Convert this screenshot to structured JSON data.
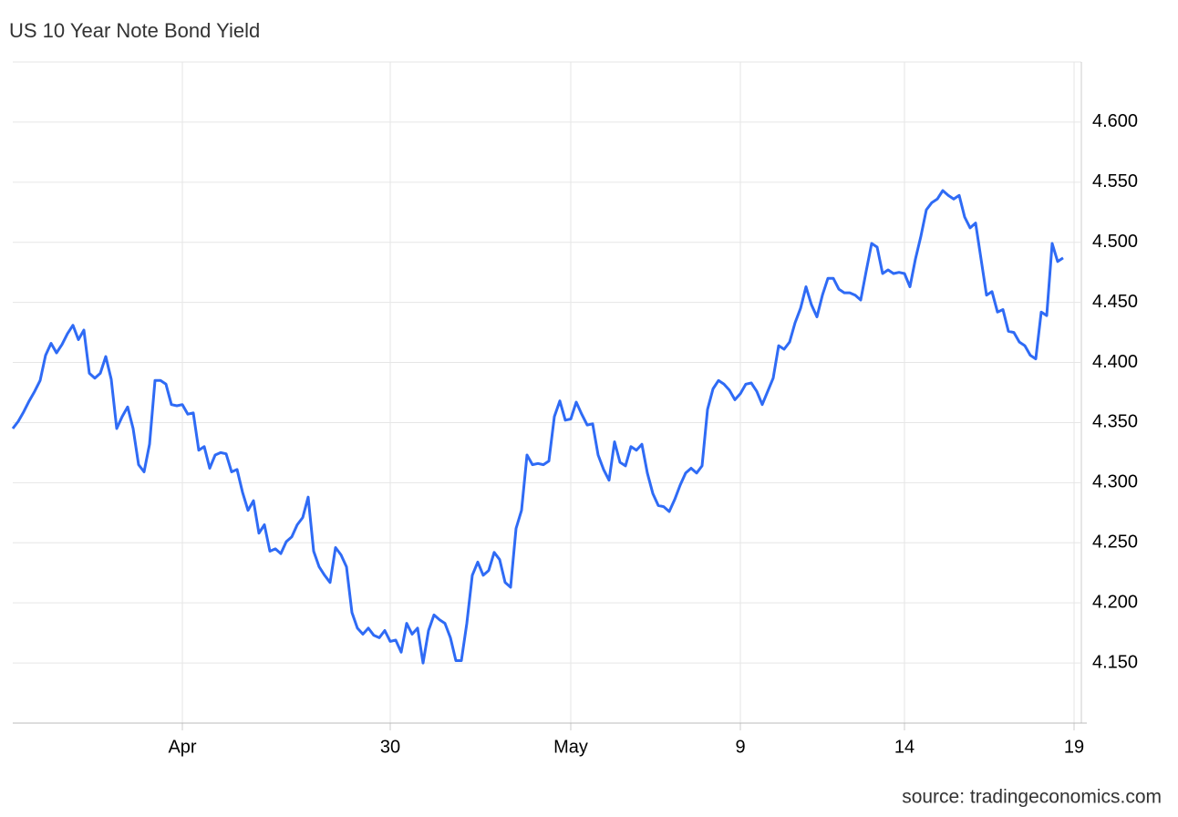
{
  "chart_data": {
    "type": "line",
    "title": "US 10 Year Note Bond Yield",
    "source": "source: tradingeconomics.com",
    "categories": [
      null,
      null,
      null,
      null,
      null,
      null,
      null,
      null,
      null,
      null,
      null,
      null,
      null,
      null,
      null,
      null,
      null,
      null,
      null,
      null,
      null,
      null,
      null,
      null,
      null,
      null,
      null,
      null,
      null,
      null,
      null,
      "Apr",
      null,
      null,
      null,
      null,
      null,
      null,
      null,
      null,
      null,
      null,
      null,
      null,
      null,
      null,
      null,
      null,
      null,
      null,
      null,
      null,
      null,
      null,
      null,
      null,
      null,
      null,
      null,
      null,
      null,
      null,
      null,
      null,
      null,
      null,
      null,
      null,
      null,
      "30",
      null,
      null,
      null,
      null,
      null,
      null,
      null,
      null,
      null,
      null,
      null,
      null,
      null,
      null,
      null,
      null,
      null,
      null,
      null,
      null,
      null,
      null,
      null,
      null,
      null,
      null,
      null,
      null,
      null,
      null,
      null,
      null,
      "May",
      null,
      null,
      null,
      null,
      null,
      null,
      null,
      null,
      null,
      null,
      null,
      null,
      null,
      null,
      null,
      null,
      null,
      null,
      null,
      null,
      null,
      null,
      null,
      null,
      null,
      null,
      null,
      null,
      null,
      null,
      "9",
      null,
      null,
      null,
      null,
      null,
      null,
      null,
      null,
      null,
      null,
      null,
      null,
      null,
      null,
      null,
      null,
      null,
      null,
      null,
      null,
      null,
      null,
      null,
      null,
      null,
      null,
      null,
      null,
      null,
      "14",
      null,
      null,
      null,
      null,
      null,
      null,
      null,
      null,
      null,
      null,
      null,
      null,
      null,
      null,
      null,
      null,
      null,
      null,
      null,
      null,
      null,
      null,
      null,
      null,
      null,
      null,
      null,
      null,
      null,
      null,
      "19"
    ],
    "series": [
      {
        "name": "US 10 Year Note Bond Yield",
        "color": "#2f6bf5",
        "values": [
          4.345,
          4.351,
          4.359,
          4.368,
          4.376,
          4.385,
          4.406,
          4.416,
          4.408,
          4.415,
          4.424,
          4.431,
          4.419,
          4.427,
          4.391,
          4.387,
          4.391,
          4.405,
          4.386,
          4.345,
          4.355,
          4.363,
          4.345,
          4.315,
          4.309,
          4.332,
          4.385,
          4.385,
          4.382,
          4.365,
          4.364,
          4.365,
          4.357,
          4.358,
          4.327,
          4.33,
          4.312,
          4.323,
          4.325,
          4.324,
          4.309,
          4.311,
          4.292,
          4.277,
          4.285,
          4.258,
          4.265,
          4.243,
          4.245,
          4.241,
          4.251,
          4.255,
          4.265,
          4.271,
          4.288,
          4.243,
          4.23,
          4.223,
          4.217,
          4.246,
          4.24,
          4.23,
          4.192,
          4.179,
          4.174,
          4.179,
          4.173,
          4.171,
          4.177,
          4.168,
          4.169,
          4.159,
          4.183,
          4.174,
          4.179,
          4.15,
          4.177,
          4.19,
          4.186,
          4.183,
          4.171,
          4.152,
          4.152,
          4.183,
          4.223,
          4.234,
          4.223,
          4.227,
          4.242,
          4.236,
          4.217,
          4.213,
          4.262,
          4.277,
          4.323,
          4.315,
          4.316,
          4.315,
          4.318,
          4.355,
          4.368,
          4.352,
          4.353,
          4.367,
          4.357,
          4.348,
          4.349,
          4.323,
          4.311,
          4.302,
          4.334,
          4.317,
          4.314,
          4.33,
          4.327,
          4.332,
          4.308,
          4.291,
          4.281,
          4.28,
          4.276,
          4.286,
          4.298,
          4.308,
          4.312,
          4.308,
          4.314,
          4.361,
          4.378,
          4.385,
          4.382,
          4.377,
          4.369,
          4.374,
          4.382,
          4.383,
          4.376,
          4.365,
          4.376,
          4.387,
          4.414,
          4.411,
          4.417,
          4.433,
          4.445,
          4.463,
          4.448,
          4.438,
          4.456,
          4.47,
          4.47,
          4.461,
          4.458,
          4.458,
          4.456,
          4.452,
          4.476,
          4.499,
          4.496,
          4.474,
          4.477,
          4.474,
          4.475,
          4.474,
          4.463,
          4.486,
          4.505,
          4.527,
          4.533,
          4.536,
          4.543,
          4.539,
          4.536,
          4.539,
          4.521,
          4.512,
          4.516,
          4.486,
          4.456,
          4.459,
          4.442,
          4.444,
          4.426,
          4.425,
          4.417,
          4.414,
          4.406,
          4.403,
          4.442,
          4.439,
          4.499,
          4.484,
          4.487,
          null,
          null
        ]
      }
    ],
    "ylim": [
      4.1,
      4.65
    ],
    "yticks": [
      {
        "value": 4.15,
        "label": "4.150"
      },
      {
        "value": 4.2,
        "label": "4.200"
      },
      {
        "value": 4.25,
        "label": "4.250"
      },
      {
        "value": 4.3,
        "label": "4.300"
      },
      {
        "value": 4.35,
        "label": "4.350"
      },
      {
        "value": 4.4,
        "label": "4.400"
      },
      {
        "value": 4.45,
        "label": "4.450"
      },
      {
        "value": 4.5,
        "label": "4.500"
      },
      {
        "value": 4.55,
        "label": "4.550"
      },
      {
        "value": 4.6,
        "label": "4.600"
      }
    ],
    "grid": true
  }
}
